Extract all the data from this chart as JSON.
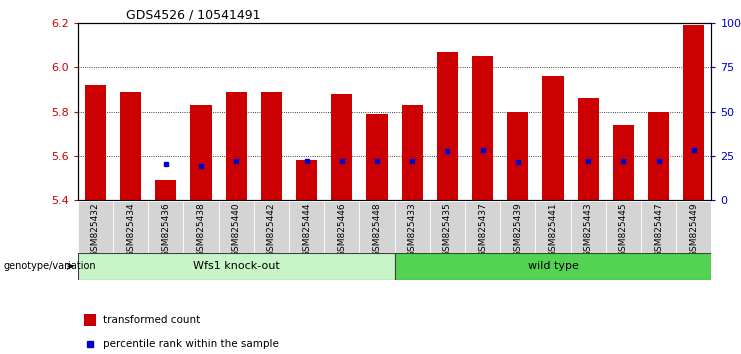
{
  "title": "GDS4526 / 10541491",
  "samples": [
    "GSM825432",
    "GSM825434",
    "GSM825436",
    "GSM825438",
    "GSM825440",
    "GSM825442",
    "GSM825444",
    "GSM825446",
    "GSM825448",
    "GSM825433",
    "GSM825435",
    "GSM825437",
    "GSM825439",
    "GSM825441",
    "GSM825443",
    "GSM825445",
    "GSM825447",
    "GSM825449"
  ],
  "red_values": [
    5.92,
    5.89,
    5.49,
    5.83,
    5.89,
    5.89,
    5.58,
    5.88,
    5.79,
    5.83,
    6.07,
    6.05,
    5.8,
    5.96,
    5.86,
    5.74,
    5.8,
    6.19
  ],
  "blue_values": [
    null,
    null,
    5.565,
    5.555,
    5.575,
    null,
    5.575,
    5.575,
    5.575,
    5.575,
    5.62,
    5.625,
    5.57,
    null,
    5.575,
    5.575,
    5.575,
    5.625
  ],
  "groups": [
    {
      "label": "Wfs1 knock-out",
      "start": 0,
      "end": 9,
      "color": "#c8f5c8"
    },
    {
      "label": "wild type",
      "start": 9,
      "end": 18,
      "color": "#52d452"
    }
  ],
  "ylim": [
    5.4,
    6.2
  ],
  "y2lim": [
    0,
    100
  ],
  "yticks": [
    5.4,
    5.6,
    5.8,
    6.0,
    6.2
  ],
  "y2ticks": [
    0,
    25,
    50,
    75,
    100
  ],
  "y2ticklabels": [
    "0",
    "25",
    "50",
    "75",
    "100%"
  ],
  "bar_width": 0.6,
  "bar_color": "#cc0000",
  "blue_color": "#0000cc",
  "bg_color": "#ffffff",
  "tick_label_bg": "#d4d4d4",
  "xlabel_color": "#cc0000",
  "y2label_color": "#0000cc",
  "genotype_label": "genotype/variation",
  "legend_red": "transformed count",
  "legend_blue": "percentile rank within the sample",
  "group_border_color": "#404040"
}
